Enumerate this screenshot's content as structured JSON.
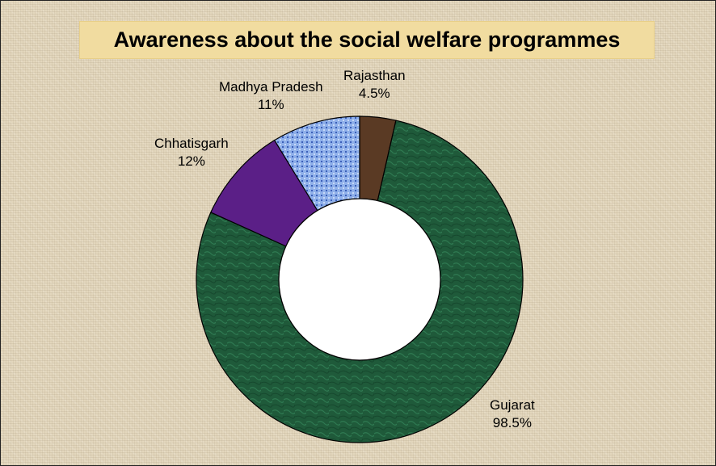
{
  "chart_data": {
    "type": "pie",
    "title": "Awareness about the social welfare programmes",
    "categories": [
      "Gujarat",
      "Chhatisgarh",
      "Madhya Pradesh",
      "Rajasthan"
    ],
    "values": [
      98.5,
      12,
      11,
      4.5
    ],
    "value_labels": [
      "98.5%",
      "12%",
      "11%",
      "4.5%"
    ],
    "colors": [
      "#1f5a3a",
      "#5b1f87",
      "#8fb0ea",
      "#5a3a24"
    ],
    "donut": true,
    "grid": false,
    "legend": "none"
  }
}
